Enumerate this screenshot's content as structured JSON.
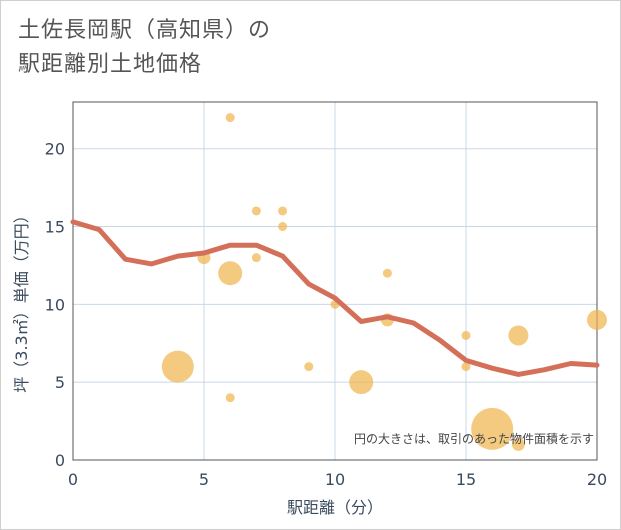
{
  "title_line1": "土佐長岡駅（高知県）の",
  "title_line2": "駅距離別土地価格",
  "chart_data": {
    "type": "scatter",
    "xlabel": "駅距離（分）",
    "ylabel": "坪（3.3㎡）単価（万円）",
    "xlim": [
      0,
      20
    ],
    "ylim": [
      0,
      23
    ],
    "xticks": [
      0,
      5,
      10,
      15,
      20
    ],
    "yticks": [
      0,
      5,
      10,
      15,
      20
    ],
    "xtick_labels": [
      "0",
      "5",
      "10",
      "15",
      "20"
    ],
    "ytick_labels": [
      "0",
      "5",
      "10",
      "15",
      "20"
    ],
    "grid": true,
    "note": "円の大きさは、取引のあった物件面積を示す",
    "point_color": "#f0b44c",
    "line_color": "#d4705a",
    "points": [
      {
        "x": 4,
        "y": 6,
        "size": 5
      },
      {
        "x": 5,
        "y": 13,
        "size": 2
      },
      {
        "x": 6,
        "y": 22,
        "size": 1
      },
      {
        "x": 6,
        "y": 12,
        "size": 4
      },
      {
        "x": 6,
        "y": 4,
        "size": 1
      },
      {
        "x": 7,
        "y": 16,
        "size": 1
      },
      {
        "x": 7,
        "y": 13,
        "size": 1
      },
      {
        "x": 8,
        "y": 16,
        "size": 1
      },
      {
        "x": 8,
        "y": 15,
        "size": 1
      },
      {
        "x": 9,
        "y": 6,
        "size": 1
      },
      {
        "x": 10,
        "y": 10,
        "size": 1
      },
      {
        "x": 11,
        "y": 5,
        "size": 4
      },
      {
        "x": 12,
        "y": 12,
        "size": 1
      },
      {
        "x": 12,
        "y": 9,
        "size": 2
      },
      {
        "x": 15,
        "y": 8,
        "size": 1
      },
      {
        "x": 15,
        "y": 6,
        "size": 1
      },
      {
        "x": 16,
        "y": 2,
        "size": 6
      },
      {
        "x": 17,
        "y": 8,
        "size": 3
      },
      {
        "x": 17,
        "y": 1,
        "size": 2
      },
      {
        "x": 20,
        "y": 9,
        "size": 3
      }
    ],
    "series": [
      {
        "x": [
          0,
          1,
          2,
          3,
          4,
          5,
          6,
          7,
          8,
          9,
          10,
          11,
          12,
          13,
          14,
          15,
          16,
          17,
          18,
          19,
          20
        ],
        "values": [
          15.3,
          14.8,
          12.9,
          12.6,
          13.1,
          13.3,
          13.8,
          13.8,
          13.1,
          11.3,
          10.4,
          8.9,
          9.2,
          8.8,
          7.7,
          6.4,
          5.9,
          5.5,
          5.8,
          6.2,
          6.1
        ]
      }
    ]
  }
}
